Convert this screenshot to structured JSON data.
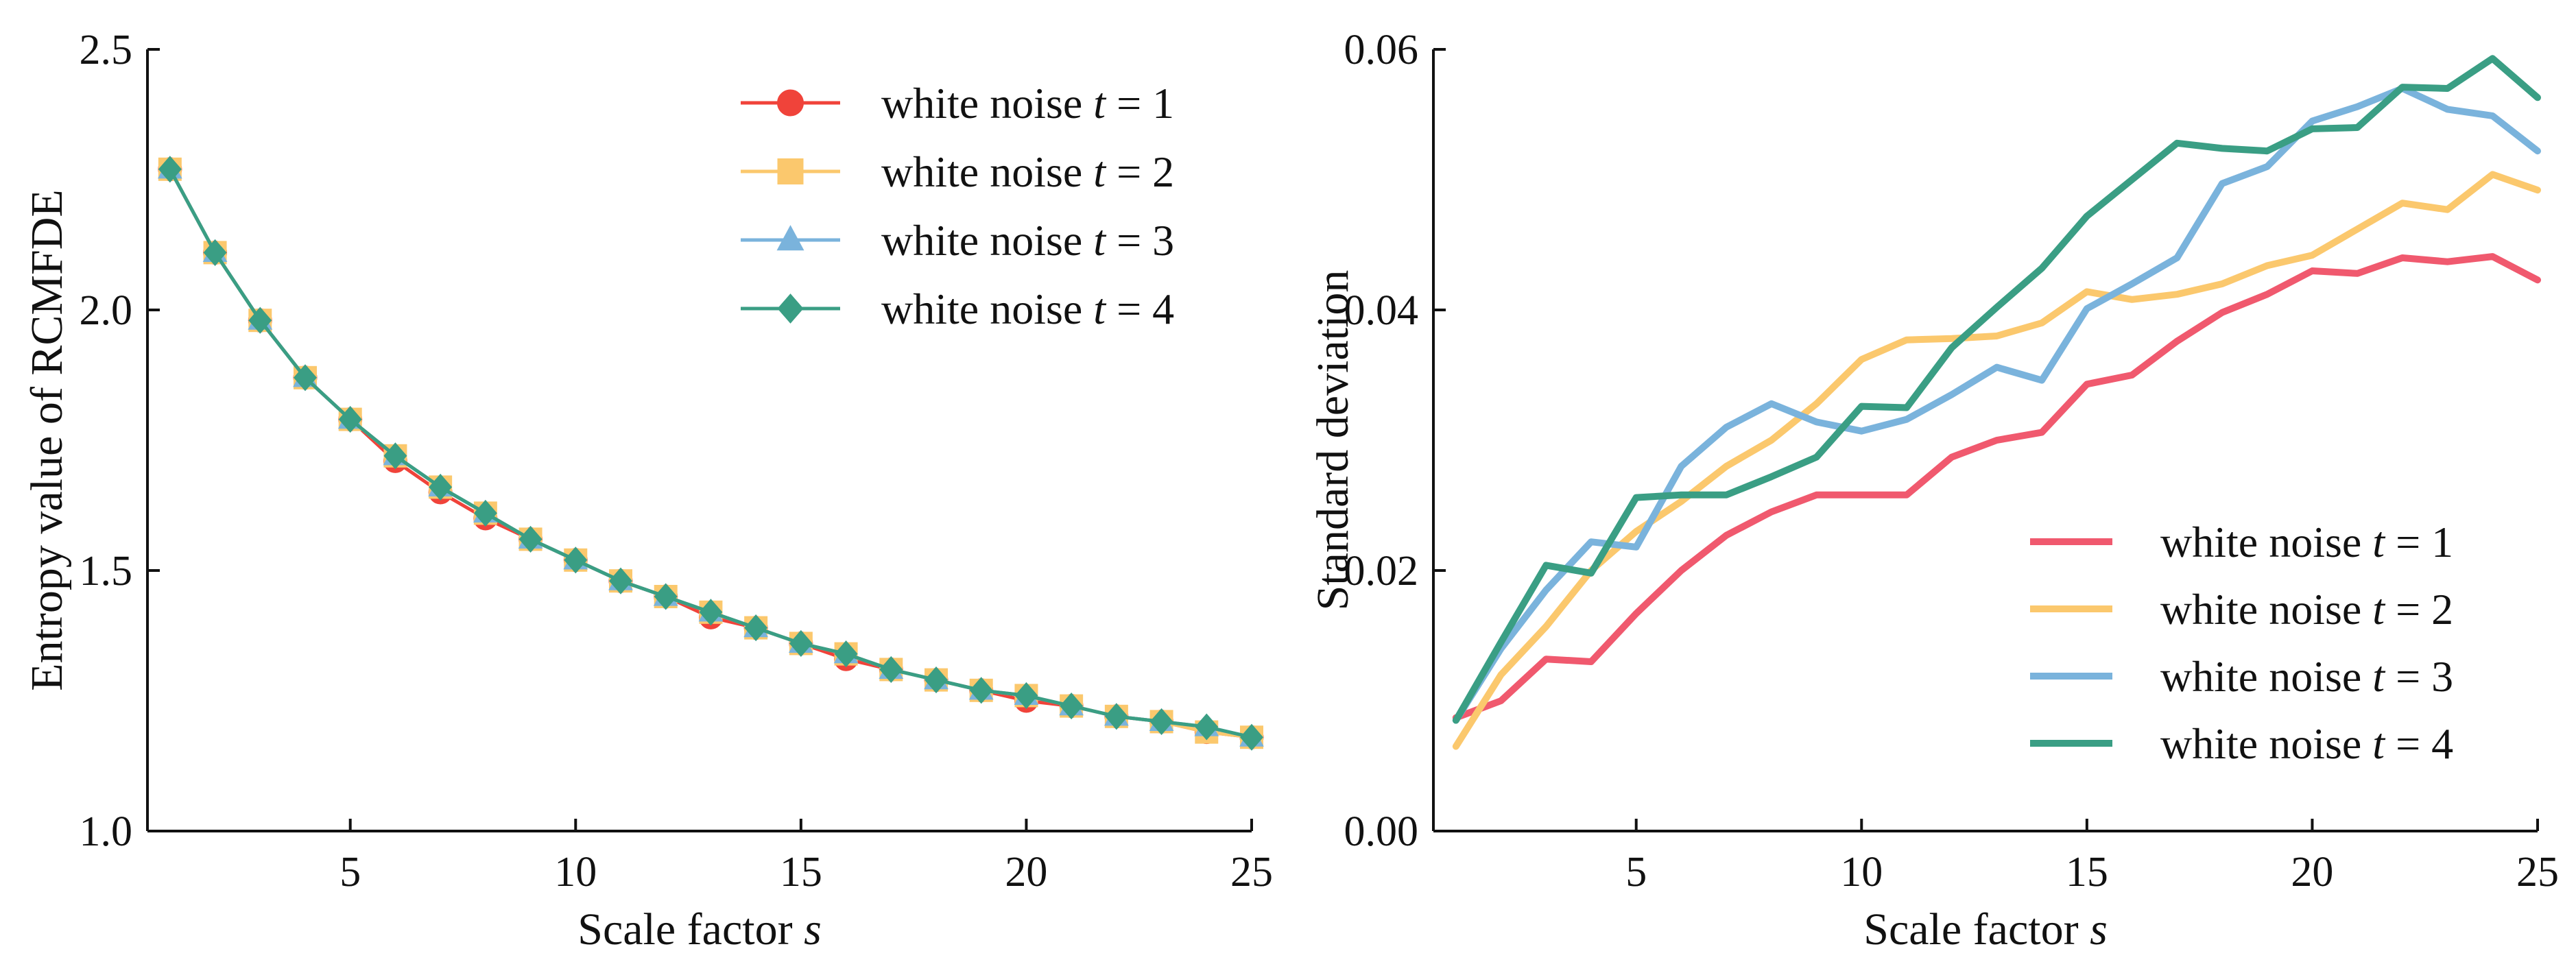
{
  "chart_data": [
    {
      "type": "line",
      "x": [
        1,
        2,
        3,
        4,
        5,
        6,
        7,
        8,
        9,
        10,
        11,
        12,
        13,
        14,
        15,
        16,
        17,
        18,
        19,
        20,
        21,
        22,
        23,
        24,
        25
      ],
      "xlim": [
        0.5,
        25
      ],
      "ylim": [
        1.0,
        2.5
      ],
      "xticks": [
        5,
        10,
        15,
        20,
        25
      ],
      "xtick_labels": [
        "5",
        "10",
        "15",
        "20",
        "25"
      ],
      "yticks": [
        1.0,
        1.5,
        2.0,
        2.5
      ],
      "ytick_labels": [
        "1.0",
        "1.5",
        "2.0",
        "2.5"
      ],
      "xlabel": "Scale factor",
      "xlabel_var": "s",
      "ylabel": "Entropy value of RCMFDE",
      "title": "",
      "grid": false,
      "legend_position": "top-right",
      "series": [
        {
          "name": "white noise",
          "var": "t",
          "suffix": " = 1",
          "color": "#f0433a",
          "marker": "circle",
          "values": [
            2.27,
            2.11,
            1.98,
            1.87,
            1.79,
            1.71,
            1.65,
            1.6,
            1.56,
            1.52,
            1.48,
            1.45,
            1.41,
            1.39,
            1.36,
            1.33,
            1.31,
            1.29,
            1.27,
            1.25,
            1.24,
            1.22,
            1.21,
            1.19,
            1.18
          ]
        },
        {
          "name": "white noise",
          "var": "t",
          "suffix": " = 2",
          "color": "#fbc86d",
          "marker": "square",
          "values": [
            2.27,
            2.11,
            1.98,
            1.87,
            1.79,
            1.72,
            1.66,
            1.61,
            1.56,
            1.52,
            1.48,
            1.45,
            1.42,
            1.39,
            1.36,
            1.34,
            1.31,
            1.29,
            1.27,
            1.26,
            1.24,
            1.22,
            1.21,
            1.19,
            1.18
          ]
        },
        {
          "name": "white noise",
          "var": "t",
          "suffix": " = 3",
          "color": "#7ab3dc",
          "marker": "triangle",
          "values": [
            2.27,
            2.11,
            1.98,
            1.87,
            1.79,
            1.72,
            1.66,
            1.61,
            1.56,
            1.52,
            1.48,
            1.45,
            1.42,
            1.39,
            1.36,
            1.34,
            1.31,
            1.29,
            1.27,
            1.26,
            1.24,
            1.22,
            1.21,
            1.2,
            1.18
          ]
        },
        {
          "name": "white noise",
          "var": "t",
          "suffix": " = 4",
          "color": "#3a9e84",
          "marker": "diamond",
          "values": [
            2.27,
            2.11,
            1.98,
            1.87,
            1.79,
            1.72,
            1.66,
            1.61,
            1.56,
            1.52,
            1.48,
            1.45,
            1.42,
            1.39,
            1.36,
            1.34,
            1.31,
            1.29,
            1.27,
            1.26,
            1.24,
            1.22,
            1.21,
            1.2,
            1.18
          ]
        }
      ]
    },
    {
      "type": "line",
      "x": [
        1,
        2,
        3,
        4,
        5,
        6,
        7,
        8,
        9,
        10,
        11,
        12,
        13,
        14,
        15,
        16,
        17,
        18,
        19,
        20,
        21,
        22,
        23,
        24,
        25
      ],
      "xlim": [
        0.5,
        25
      ],
      "ylim": [
        0.0,
        0.06
      ],
      "xticks": [
        5,
        10,
        15,
        20,
        25
      ],
      "xtick_labels": [
        "5",
        "10",
        "15",
        "20",
        "25"
      ],
      "yticks": [
        0.0,
        0.02,
        0.04,
        0.06
      ],
      "ytick_labels": [
        "0.00",
        "0.02",
        "0.04",
        "0.06"
      ],
      "xlabel": "Scale factor",
      "xlabel_var": "s",
      "ylabel": "Standard deviation",
      "title": "",
      "grid": false,
      "legend_position": "bottom-right",
      "series": [
        {
          "name": "white noise",
          "var": "t",
          "suffix": " = 1",
          "color": "#f0596e",
          "marker": "none",
          "values": [
            0.0087,
            0.01,
            0.0132,
            0.013,
            0.0167,
            0.02,
            0.0227,
            0.0245,
            0.0258,
            0.0258,
            0.0258,
            0.0287,
            0.03,
            0.0306,
            0.0343,
            0.035,
            0.0376,
            0.0398,
            0.0412,
            0.043,
            0.0428,
            0.044,
            0.0437,
            0.0441,
            0.0423
          ]
        },
        {
          "name": "white noise",
          "var": "t",
          "suffix": " = 2",
          "color": "#fbc86d",
          "marker": "none",
          "values": [
            0.0065,
            0.012,
            0.0157,
            0.02,
            0.023,
            0.0253,
            0.028,
            0.03,
            0.0328,
            0.0362,
            0.0377,
            0.0378,
            0.038,
            0.039,
            0.0414,
            0.0408,
            0.0412,
            0.042,
            0.0434,
            0.0442,
            0.0462,
            0.0482,
            0.0477,
            0.0504,
            0.0492
          ]
        },
        {
          "name": "white noise",
          "var": "t",
          "suffix": " = 3",
          "color": "#7ab3dc",
          "marker": "none",
          "values": [
            0.0085,
            0.014,
            0.0185,
            0.0222,
            0.0218,
            0.028,
            0.031,
            0.0328,
            0.0314,
            0.0307,
            0.0316,
            0.0335,
            0.0356,
            0.0346,
            0.0401,
            0.042,
            0.044,
            0.0497,
            0.051,
            0.0545,
            0.0556,
            0.057,
            0.0554,
            0.0549,
            0.0522
          ]
        },
        {
          "name": "white noise",
          "var": "t",
          "suffix": " = 4",
          "color": "#3a9e84",
          "marker": "none",
          "values": [
            0.0085,
            0.0145,
            0.0204,
            0.0198,
            0.0256,
            0.0258,
            0.0258,
            0.0272,
            0.0287,
            0.0326,
            0.0325,
            0.0371,
            0.0402,
            0.0432,
            0.0472,
            0.05,
            0.0528,
            0.0524,
            0.0522,
            0.0539,
            0.054,
            0.0571,
            0.057,
            0.0593,
            0.0563
          ]
        }
      ]
    }
  ]
}
